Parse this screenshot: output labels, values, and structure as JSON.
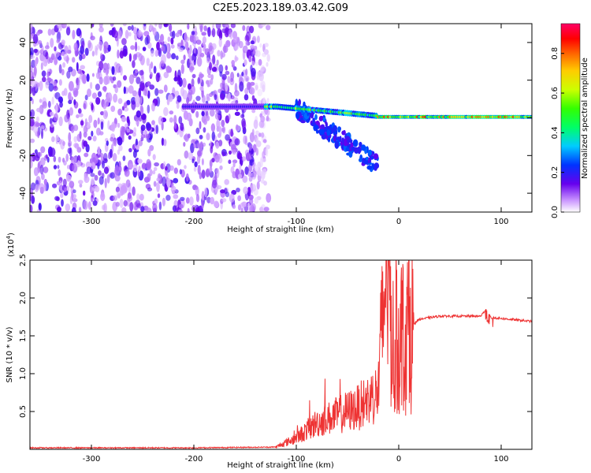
{
  "title": "C2E5.2023.189.03.42.G09",
  "chart_data": [
    {
      "type": "heatmap",
      "xlabel": "Height of straight line (km)",
      "ylabel": "Frequency (Hz)",
      "xlim": [
        -360,
        130
      ],
      "ylim": [
        -50,
        50
      ],
      "xticks": [
        -300,
        -200,
        -100,
        0,
        100
      ],
      "yticks": [
        -40,
        -20,
        0,
        20,
        40
      ],
      "colorbar": {
        "label": "Normalized spectral amplitude",
        "range": [
          0.0,
          0.95
        ],
        "ticks": [
          0.0,
          0.2,
          0.4,
          0.6,
          0.8
        ],
        "colors": [
          "#ffffff",
          "#cc99ff",
          "#6600ee",
          "#0033ff",
          "#00ccff",
          "#00ff66",
          "#33ff00",
          "#ccff00",
          "#ffcc00",
          "#ff6600",
          "#ff0000",
          "#ff0066"
        ]
      },
      "features": [
        {
          "name": "noise",
          "x": [
            -360,
            -135
          ],
          "f": [
            -50,
            50
          ],
          "amplitude": 0.15
        },
        {
          "name": "main-band",
          "x": [
            -210,
            130
          ],
          "f": [
            -2,
            7
          ],
          "amplitude": 0.6
        },
        {
          "name": "dispersed-arc",
          "x": [
            -100,
            -20
          ],
          "f": [
            -30,
            12
          ],
          "amplitude": 0.3
        }
      ]
    },
    {
      "type": "line",
      "xlabel": "Height of straight line (km)",
      "ylabel": "SNR (10 * v/v)",
      "scale_label": "(x10",
      "scale_exp": "4",
      "scale_close": ")",
      "xlim": [
        -360,
        130
      ],
      "ylim": [
        0,
        2.5
      ],
      "xticks": [
        -300,
        -200,
        -100,
        0,
        100
      ],
      "yticks": [
        0.5,
        1.0,
        1.5,
        2.0,
        2.5
      ],
      "ytick_labels": [
        "0.5",
        "1.0",
        "1.5",
        "2.0",
        "2.5"
      ],
      "color": "#ee3333",
      "series": [
        {
          "name": "SNR",
          "x": [
            -360,
            -200,
            -120,
            -100,
            -80,
            -60,
            -40,
            -20,
            -12,
            -5,
            0,
            10,
            20,
            40,
            60,
            80,
            85,
            90,
            100,
            130
          ],
          "values": [
            0.02,
            0.02,
            0.03,
            0.15,
            0.35,
            0.45,
            0.55,
            0.75,
            2.5,
            1.3,
            1.45,
            1.6,
            1.72,
            1.76,
            1.76,
            1.76,
            1.85,
            1.74,
            1.73,
            1.69
          ]
        }
      ]
    }
  ]
}
